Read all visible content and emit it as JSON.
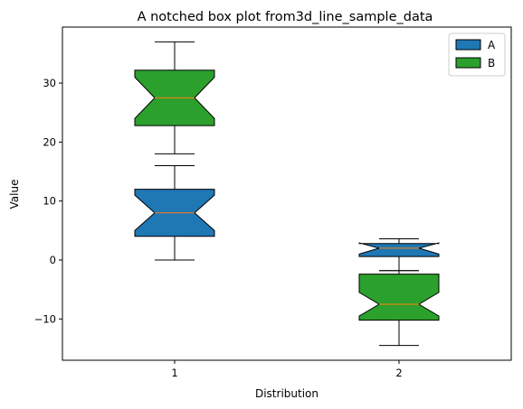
{
  "chart_data": {
    "type": "boxplot",
    "title": "A notched box plot from3d_line_sample_data",
    "xlabel": "Distribution",
    "ylabel": "Value",
    "categories": [
      "1",
      "2"
    ],
    "ylim": [
      -17,
      39.5
    ],
    "yticks": [
      -10,
      0,
      10,
      20,
      30
    ],
    "legend": {
      "position": "top-right",
      "entries": [
        {
          "label": "A",
          "color": "#1f77b4"
        },
        {
          "label": "B",
          "color": "#2ca02c"
        }
      ]
    },
    "series": [
      {
        "name": "A",
        "color": "#1f77b4",
        "boxes": [
          {
            "category": "1",
            "whisker_low": 0,
            "q1": 4,
            "median": 8,
            "q3": 12,
            "whisker_high": 16,
            "notch_low": 5,
            "notch_high": 11
          },
          {
            "category": "2",
            "whisker_low": -1.8,
            "q1": 0.6,
            "median": 2.0,
            "q3": 2.8,
            "whisker_high": 3.6,
            "notch_low": 1.0,
            "notch_high": 2.9
          }
        ]
      },
      {
        "name": "B",
        "color": "#2ca02c",
        "boxes": [
          {
            "category": "1",
            "whisker_low": 18,
            "q1": 22.8,
            "median": 27.5,
            "q3": 32.2,
            "whisker_high": 37,
            "notch_low": 24,
            "notch_high": 31
          },
          {
            "category": "2",
            "whisker_low": -14.5,
            "q1": -10.2,
            "median": -7.5,
            "q3": -2.4,
            "whisker_high": -1.8,
            "notch_low": -9.5,
            "notch_high": -5.5
          }
        ]
      }
    ],
    "median_color": "#ff7f0e"
  }
}
